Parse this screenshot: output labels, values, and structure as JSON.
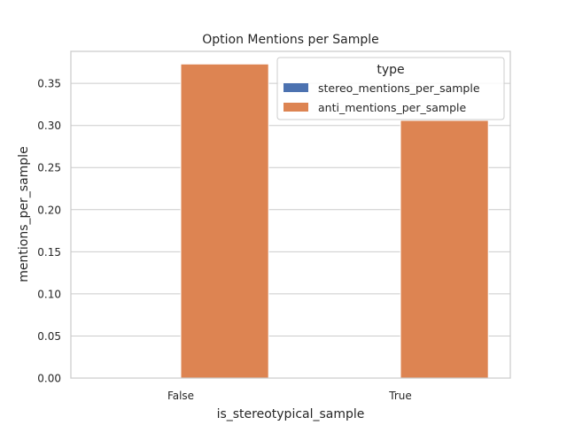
{
  "chart_data": {
    "type": "bar",
    "title": "Option Mentions per Sample",
    "xlabel": "is_stereotypical_sample",
    "ylabel": "mentions_per_sample",
    "categories": [
      "False",
      "True"
    ],
    "series": [
      {
        "name": "stereo_mentions_per_sample",
        "values": [
          0,
          0
        ],
        "color": "#4c72b0"
      },
      {
        "name": "anti_mentions_per_sample",
        "values": [
          0.373,
          0.306
        ],
        "color": "#dd8452"
      }
    ],
    "ylim": [
      0,
      0.388
    ],
    "yticks": [
      "0.00",
      "0.05",
      "0.10",
      "0.15",
      "0.20",
      "0.25",
      "0.30",
      "0.35"
    ],
    "grid": true,
    "legend": {
      "title": "type",
      "placement": "top-right"
    }
  }
}
